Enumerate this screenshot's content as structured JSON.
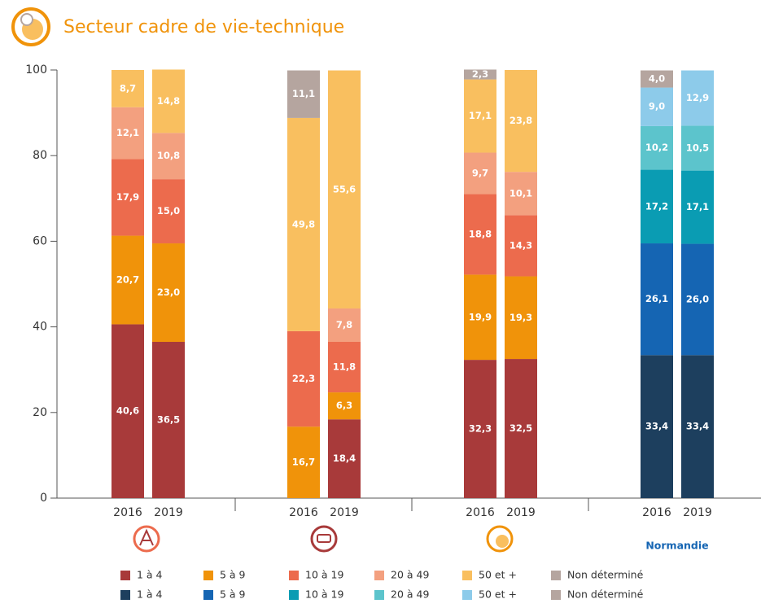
{
  "chart_data": {
    "type": "stacked_bar",
    "title": "Secteur cadre de vie-technique",
    "categories": [
      "2016",
      "2019",
      "2016",
      "2019",
      "2016",
      "2019",
      "2016",
      "2019"
    ],
    "groups": [
      null,
      null,
      null,
      "Normandie"
    ],
    "ylim": [
      0,
      100
    ],
    "yticks": [
      0,
      20,
      40,
      60,
      80,
      100
    ],
    "series": [
      {
        "name": "1 à 4",
        "color": "#a83a3a",
        "values": [
          40.6,
          36.5,
          null,
          18.4,
          32.3,
          32.5,
          null,
          null
        ],
        "value_labels": [
          "40,6",
          "36,5",
          null,
          "18,4",
          "32,3",
          "32,5",
          null,
          null
        ]
      },
      {
        "name": "5 à 9",
        "color": "#f0930a",
        "values": [
          20.7,
          23.0,
          16.7,
          6.3,
          19.9,
          19.3,
          null,
          null
        ],
        "value_labels": [
          "20,7",
          "23,0",
          "16,7",
          "6,3",
          "19,9",
          "19,3",
          null,
          null
        ]
      },
      {
        "name": "10 à 19",
        "color": "#ec6b4d",
        "values": [
          17.9,
          15.0,
          22.3,
          11.8,
          18.8,
          14.3,
          null,
          null
        ],
        "value_labels": [
          "17,9",
          "15,0",
          "22,3",
          "11,8",
          "18,8",
          "14,3",
          null,
          null
        ]
      },
      {
        "name": "20 à 49",
        "color": "#f3a07f",
        "values": [
          12.1,
          10.8,
          null,
          7.8,
          9.7,
          10.1,
          null,
          null
        ],
        "value_labels": [
          "12,1",
          "10,8",
          null,
          "7,8",
          "9,7",
          "10,1",
          null,
          null
        ]
      },
      {
        "name": "50 et +",
        "color": "#f9bf5f",
        "values": [
          8.7,
          14.8,
          49.8,
          55.6,
          17.1,
          23.8,
          null,
          null
        ],
        "value_labels": [
          "8,7",
          "14,8",
          "49,8",
          "55,6",
          "17,1",
          "23,8",
          null,
          null
        ]
      },
      {
        "name": "Non déterminé",
        "color": "#b5a59f",
        "values": [
          null,
          null,
          11.1,
          null,
          2.3,
          null,
          null,
          null
        ],
        "value_labels": [
          null,
          null,
          "11,1",
          null,
          "2,3",
          null,
          null,
          null
        ]
      },
      {
        "name": "1 à 4",
        "color": "#1d3f5e",
        "values": [
          null,
          null,
          null,
          null,
          null,
          null,
          33.4,
          33.4
        ],
        "value_labels": [
          null,
          null,
          null,
          null,
          null,
          null,
          "33,4",
          "33,4"
        ]
      },
      {
        "name": "5 à 9",
        "color": "#1565b3",
        "values": [
          null,
          null,
          null,
          null,
          null,
          null,
          26.1,
          26.0
        ],
        "value_labels": [
          null,
          null,
          null,
          null,
          null,
          null,
          "26,1",
          "26,0"
        ]
      },
      {
        "name": "10 à 19",
        "color": "#0a9cb3",
        "values": [
          null,
          null,
          null,
          null,
          null,
          null,
          17.2,
          17.1
        ],
        "value_labels": [
          null,
          null,
          null,
          null,
          null,
          null,
          "17,2",
          "17,1"
        ]
      },
      {
        "name": "20 à 49",
        "color": "#5cc4cc",
        "values": [
          null,
          null,
          null,
          null,
          null,
          null,
          10.2,
          10.5
        ],
        "value_labels": [
          null,
          null,
          null,
          null,
          null,
          null,
          "10,2",
          "10,5"
        ]
      },
      {
        "name": "50 et +",
        "color": "#8dcbea",
        "values": [
          null,
          null,
          null,
          null,
          null,
          null,
          9.0,
          12.9
        ],
        "value_labels": [
          null,
          null,
          null,
          null,
          null,
          null,
          "9,0",
          "12,9"
        ]
      },
      {
        "name": "Non déterminé",
        "color": "#b5a59f",
        "values": [
          null,
          null,
          null,
          null,
          null,
          null,
          4.0,
          null
        ],
        "value_labels": [
          null,
          null,
          null,
          null,
          null,
          null,
          "4,0",
          null
        ]
      }
    ]
  }
}
